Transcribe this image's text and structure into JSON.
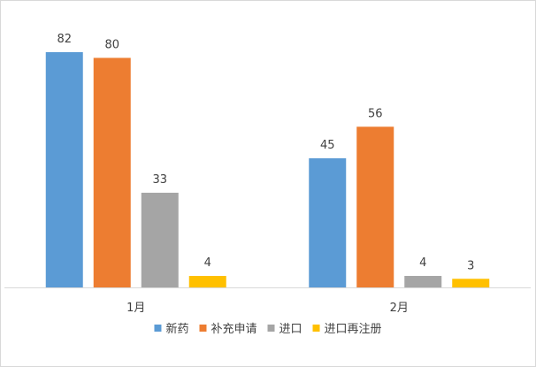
{
  "chart_data": {
    "type": "bar",
    "categories": [
      "1月",
      "2月"
    ],
    "series": [
      {
        "name": "新药",
        "values": [
          82,
          45
        ],
        "color": "#5b9bd5"
      },
      {
        "name": "补充申请",
        "values": [
          80,
          56
        ],
        "color": "#ed7d31"
      },
      {
        "name": "进口",
        "values": [
          33,
          4
        ],
        "color": "#a5a5a5"
      },
      {
        "name": "进口再注册",
        "values": [
          4,
          3
        ],
        "color": "#ffc000"
      }
    ],
    "ylim": [
      0,
      90
    ],
    "grid": false,
    "legend": "bottom",
    "data_labels": true
  }
}
